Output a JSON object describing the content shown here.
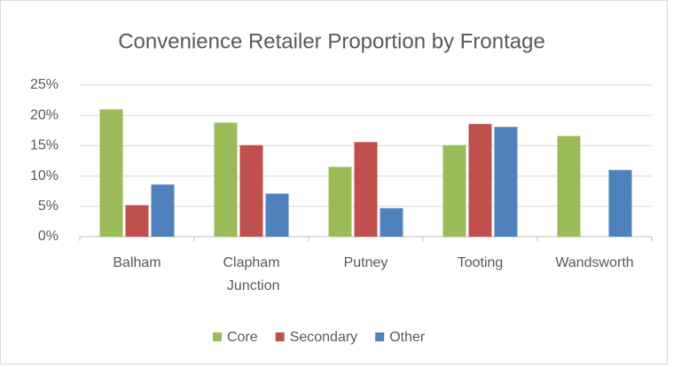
{
  "chart_data": {
    "type": "bar",
    "title": "Convenience Retailer Proportion by Frontage",
    "categories": [
      "Balham",
      "Clapham Junction",
      "Putney",
      "Tooting",
      "Wandsworth"
    ],
    "series": [
      {
        "name": "Core",
        "color": "#9bbb59",
        "values": [
          21,
          18.8,
          11.5,
          15.1,
          16.6
        ]
      },
      {
        "name": "Secondary",
        "color": "#c0504d",
        "values": [
          5.2,
          15.1,
          15.6,
          18.6,
          0
        ]
      },
      {
        "name": "Other",
        "color": "#4f81bd",
        "values": [
          8.6,
          7.1,
          4.7,
          18.1,
          11
        ]
      }
    ],
    "ylim": [
      0,
      25
    ],
    "yticks": [
      {
        "value": 0,
        "label": "0%"
      },
      {
        "value": 5,
        "label": "5%"
      },
      {
        "value": 10,
        "label": "10%"
      },
      {
        "value": 15,
        "label": "15%"
      },
      {
        "value": 20,
        "label": "20%"
      },
      {
        "value": 25,
        "label": "25%"
      }
    ],
    "grid": true,
    "legend": "bottom"
  }
}
